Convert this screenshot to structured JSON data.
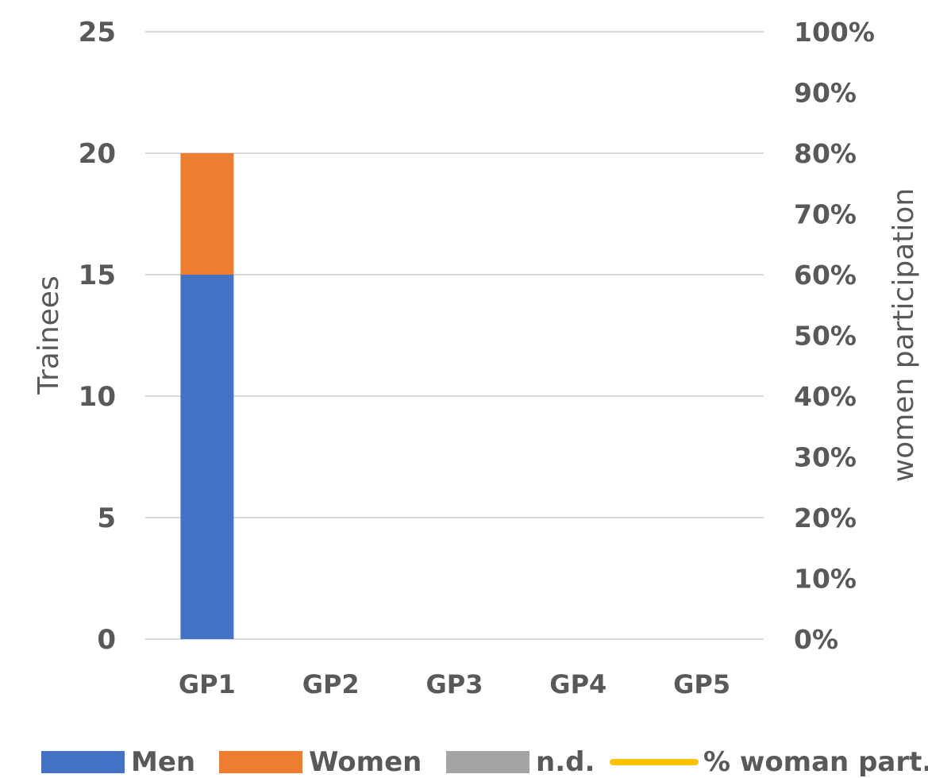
{
  "chart_data": {
    "type": "bar",
    "stacked": true,
    "categories": [
      "GP1",
      "GP2",
      "GP3",
      "GP4",
      "GP5"
    ],
    "series": [
      {
        "name": "Men",
        "values": [
          15,
          0,
          0,
          0,
          0
        ],
        "color": "#4472C4"
      },
      {
        "name": "Women",
        "values": [
          5,
          0,
          0,
          0,
          0
        ],
        "color": "#ED7D31"
      },
      {
        "name": "n.d.",
        "values": [
          0,
          0,
          0,
          0,
          0
        ],
        "color": "#A5A5A5"
      }
    ],
    "line_series": {
      "name": "% woman part.",
      "values": [
        null,
        null,
        null,
        null,
        null
      ],
      "color": "#FFC000",
      "axis": "right"
    },
    "ylabel": "Trainees",
    "ylabel_right": "women participation",
    "ylim": [
      0,
      25
    ],
    "yticks": [
      "0",
      "5",
      "10",
      "15",
      "20",
      "25"
    ],
    "ylim_right": [
      0,
      100
    ],
    "yticks_right": [
      "0%",
      "10%",
      "20%",
      "30%",
      "40%",
      "50%",
      "60%",
      "70%",
      "80%",
      "90%",
      "100%"
    ],
    "grid": true,
    "legend_position": "bottom"
  },
  "colors": {
    "gridline": "#D9D9D9",
    "text": "#595959"
  }
}
